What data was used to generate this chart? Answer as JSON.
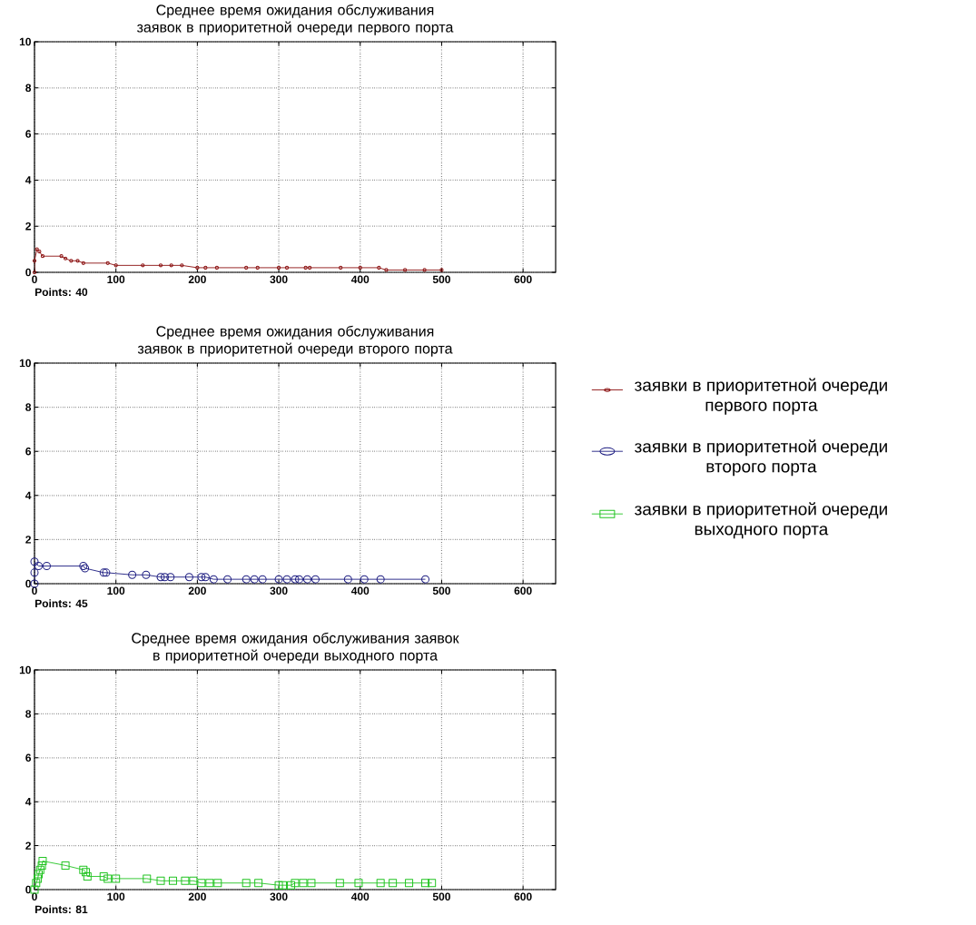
{
  "chart_data": [
    {
      "type": "line",
      "title": "Среднее время ожидания обслуживания\nзаявок в приоритетной очереди первого порта",
      "annotations": [
        "Points: 40"
      ],
      "xlim": [
        0,
        640
      ],
      "ylim": [
        0,
        10
      ],
      "xticks": [
        0,
        100,
        200,
        300,
        400,
        500,
        600
      ],
      "yticks": [
        0,
        2,
        4,
        6,
        8,
        10
      ],
      "grid": true,
      "legend": "right",
      "marker": "circle",
      "series": [
        {
          "name": "заявки в приоритетной очереди первого порта",
          "color": "#8b1010",
          "x": [
            0,
            0,
            3,
            6,
            10,
            33,
            38,
            45,
            53,
            60,
            90,
            100,
            133,
            155,
            168,
            181,
            200,
            210,
            224,
            260,
            274,
            300,
            310,
            333,
            338,
            376,
            400,
            423,
            432,
            455,
            479,
            500
          ],
          "values": [
            0,
            0.5,
            1.0,
            0.9,
            0.7,
            0.7,
            0.6,
            0.5,
            0.5,
            0.4,
            0.4,
            0.3,
            0.3,
            0.3,
            0.3,
            0.3,
            0.2,
            0.2,
            0.2,
            0.2,
            0.2,
            0.2,
            0.2,
            0.2,
            0.2,
            0.2,
            0.2,
            0.2,
            0.1,
            0.1,
            0.1,
            0.1
          ]
        }
      ]
    },
    {
      "type": "line",
      "title": "Среднее время ожидания обслуживания\nзаявок в приоритетной очереди второго порта",
      "annotations": [
        "Points: 45"
      ],
      "xlim": [
        0,
        640
      ],
      "ylim": [
        0,
        10
      ],
      "xticks": [
        0,
        100,
        200,
        300,
        400,
        500,
        600
      ],
      "yticks": [
        0,
        2,
        4,
        6,
        8,
        10
      ],
      "grid": true,
      "legend": "right",
      "marker": "circle",
      "series": [
        {
          "name": "заявки в приоритетной очереди второго порта",
          "color": "#1c1c80",
          "x": [
            0,
            0,
            0,
            5,
            15,
            60,
            62,
            85,
            88,
            120,
            137,
            155,
            160,
            167,
            190,
            205,
            210,
            220,
            237,
            260,
            270,
            280,
            300,
            310,
            320,
            325,
            335,
            345,
            385,
            405,
            425,
            480
          ],
          "values": [
            0,
            0.5,
            1.0,
            0.8,
            0.8,
            0.8,
            0.7,
            0.5,
            0.5,
            0.4,
            0.4,
            0.3,
            0.3,
            0.3,
            0.3,
            0.3,
            0.3,
            0.2,
            0.2,
            0.2,
            0.2,
            0.2,
            0.2,
            0.2,
            0.2,
            0.2,
            0.2,
            0.2,
            0.2,
            0.2,
            0.2,
            0.2
          ]
        }
      ]
    },
    {
      "type": "line",
      "title": "Среднее время ожидания обслуживания заявок\nв приоритетной очереди выходного порта",
      "annotations": [
        "Points: 81"
      ],
      "xlim": [
        0,
        640
      ],
      "ylim": [
        0,
        10
      ],
      "xticks": [
        0,
        100,
        200,
        300,
        400,
        500,
        600
      ],
      "yticks": [
        0,
        2,
        4,
        6,
        8,
        10
      ],
      "grid": true,
      "legend": "right",
      "marker": "square",
      "series": [
        {
          "name": "заявки в приоритетной очереди выходного порта",
          "color": "#22c422",
          "x": [
            0,
            2,
            4,
            5,
            7,
            9,
            10,
            38,
            60,
            63,
            65,
            85,
            90,
            100,
            138,
            155,
            170,
            185,
            195,
            205,
            215,
            225,
            260,
            275,
            300,
            305,
            315,
            320,
            330,
            340,
            375,
            398,
            425,
            440,
            460,
            480,
            488
          ],
          "values": [
            0,
            0.3,
            0.5,
            0.7,
            0.9,
            1.1,
            1.3,
            1.1,
            0.9,
            0.8,
            0.6,
            0.6,
            0.5,
            0.5,
            0.5,
            0.4,
            0.4,
            0.4,
            0.4,
            0.3,
            0.3,
            0.3,
            0.3,
            0.3,
            0.2,
            0.2,
            0.2,
            0.3,
            0.3,
            0.3,
            0.3,
            0.3,
            0.3,
            0.3,
            0.3,
            0.3,
            0.3
          ]
        }
      ]
    }
  ]
}
